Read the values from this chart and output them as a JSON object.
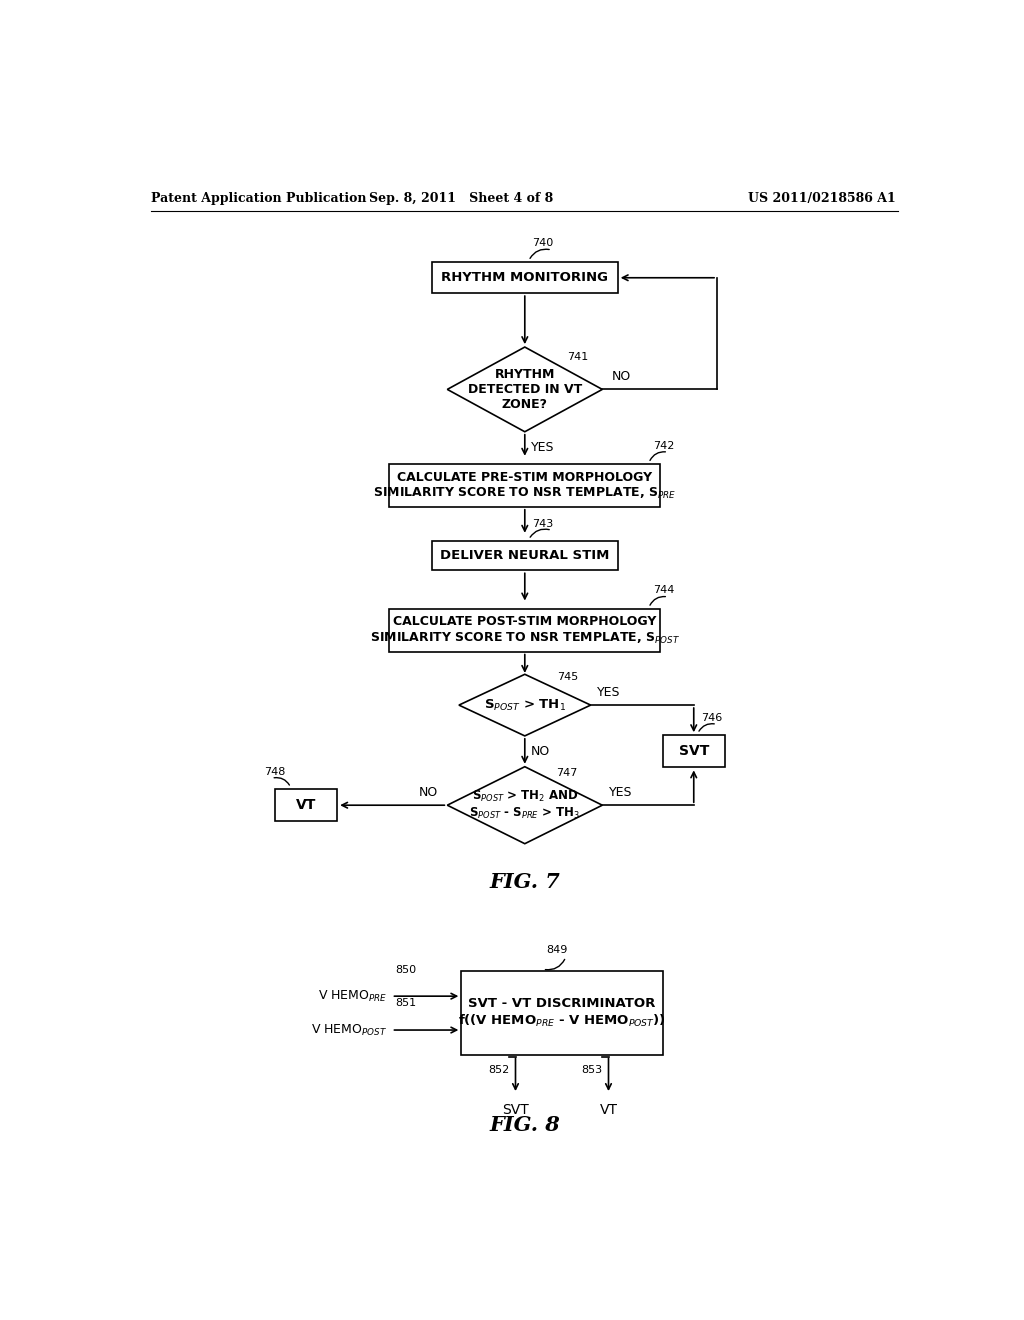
{
  "title_left": "Patent Application Publication",
  "title_center": "Sep. 8, 2011   Sheet 4 of 8",
  "title_right": "US 2011/0218586 A1",
  "background": "#ffffff",
  "fig7_label": "FIG. 7",
  "fig8_label": "FIG. 8"
}
